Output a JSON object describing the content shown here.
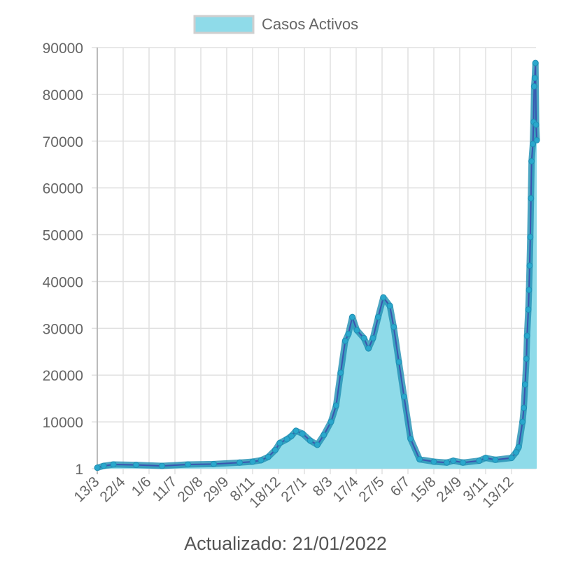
{
  "legend": {
    "label": "Casos Activos"
  },
  "footer": {
    "text": "Actualizado: 21/01/2022"
  },
  "colors": {
    "fill": "#8fdbe9",
    "point": "#2aa7cc",
    "point_border": "#1f8fb3",
    "line": "#3a55b0",
    "grid": "#e0e0e0"
  },
  "chart_data": {
    "type": "line",
    "title": "",
    "xlabel": "",
    "ylabel": "",
    "filled": true,
    "grid": true,
    "legend_position": "top",
    "ylim": [
      1,
      90000
    ],
    "y_ticks": [
      "1",
      "10000",
      "20000",
      "30000",
      "40000",
      "50000",
      "60000",
      "70000",
      "80000",
      "90000"
    ],
    "x_tick_labels": [
      "13/3",
      "22/4",
      "1/6",
      "11/7",
      "20/8",
      "29/9",
      "8/11",
      "18/12",
      "27/1",
      "8/3",
      "17/4",
      "27/5",
      "6/7",
      "15/8",
      "24/9",
      "3/11",
      "13/12"
    ],
    "x_tick_dates": [
      "13/03/2020",
      "22/04/2020",
      "01/06/2020",
      "11/07/2020",
      "20/08/2020",
      "29/09/2020",
      "08/11/2020",
      "18/12/2020",
      "27/01/2021",
      "08/03/2021",
      "17/04/2021",
      "27/05/2021",
      "06/07/2021",
      "15/08/2021",
      "24/09/2021",
      "03/11/2021",
      "13/12/2021"
    ],
    "xlim": [
      "13/03/2020",
      "21/01/2022"
    ],
    "series": [
      {
        "name": "Casos Activos",
        "x": [
          "13/03/2020",
          "23/03/2020",
          "07/04/2020",
          "12/05/2020",
          "21/06/2020",
          "31/07/2020",
          "09/09/2020",
          "19/10/2020",
          "08/11/2020",
          "21/11/2020",
          "02/12/2020",
          "13/12/2020",
          "20/12/2020",
          "31/12/2020",
          "07/01/2021",
          "14/01/2021",
          "24/01/2021",
          "05/02/2021",
          "16/02/2021",
          "26/02/2021",
          "09/03/2021",
          "17/03/2021",
          "24/03/2021",
          "31/03/2021",
          "05/04/2021",
          "11/04/2021",
          "18/04/2021",
          "29/04/2021",
          "06/05/2021",
          "13/05/2021",
          "21/05/2021",
          "29/05/2021",
          "08/06/2021",
          "14/06/2021",
          "22/06/2021",
          "30/06/2021",
          "10/07/2021",
          "24/07/2021",
          "15/08/2021",
          "04/09/2021",
          "14/09/2021",
          "29/09/2021",
          "24/10/2021",
          "03/11/2021",
          "18/11/2021",
          "13/12/2021",
          "20/12/2021",
          "24/12/2021",
          "30/12/2021",
          "01/01/2022",
          "03/01/2022",
          "05/01/2022",
          "06/01/2022",
          "08/01/2022",
          "09/01/2022",
          "10/01/2022",
          "11/01/2022",
          "12/01/2022",
          "13/01/2022",
          "15/01/2022",
          "16/01/2022",
          "17/01/2022",
          "18/01/2022",
          "19/01/2022",
          "20/01/2022",
          "21/01/2022"
        ],
        "values": [
          200,
          600,
          900,
          800,
          600,
          900,
          1000,
          1300,
          1500,
          1800,
          2500,
          4000,
          5500,
          6300,
          7000,
          8100,
          7500,
          6000,
          5100,
          7200,
          10000,
          13500,
          20500,
          27300,
          28800,
          32400,
          29600,
          27900,
          25700,
          27900,
          32400,
          36600,
          34800,
          30300,
          22800,
          15400,
          6400,
          2000,
          1500,
          1300,
          1700,
          1300,
          1700,
          2300,
          1900,
          2300,
          3500,
          4600,
          10000,
          13000,
          18000,
          23500,
          28400,
          34000,
          38200,
          43400,
          49500,
          57800,
          65700,
          69400,
          74100,
          81700,
          83500,
          86700,
          73500,
          70200
        ]
      }
    ]
  }
}
